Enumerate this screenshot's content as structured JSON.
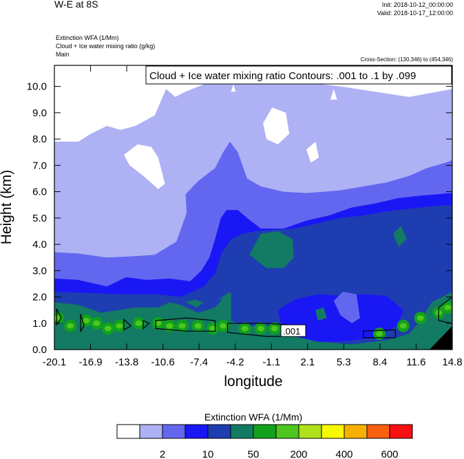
{
  "header": {
    "title": "W-E at 8S",
    "init": "Init: 2018-10-12_00:00:00",
    "valid": "Valid: 2018-10-17_12:00:00",
    "field1": "Extinction WFA   (1/Mm)",
    "field2": "Cloud + Ice water mixing ratio   (g/kg)",
    "field3": "Main",
    "cross_section": "Cross-Section: (130,346) to (454,346)"
  },
  "chart_data": {
    "type": "contour",
    "title": "W-E at 8S",
    "xlabel": "longitude",
    "ylabel": "Height (km)",
    "xlim": [
      -20.1,
      14.8
    ],
    "ylim": [
      0,
      10.8
    ],
    "xticks": [
      "-20.1",
      "-16.9",
      "-13.8",
      "-10.6",
      "-7.4",
      "-4.2",
      "-1.1",
      "2.1",
      "5.3",
      "8.4",
      "11.6",
      "14.8"
    ],
    "yticks": [
      {
        "value": 0,
        "label": "0.0"
      },
      {
        "value": 1,
        "label": "1.0"
      },
      {
        "value": 2,
        "label": "2.0"
      },
      {
        "value": 3,
        "label": "3.0"
      },
      {
        "value": 4,
        "label": "4.0"
      },
      {
        "value": 5,
        "label": "5.0"
      },
      {
        "value": 6,
        "label": "6.0"
      },
      {
        "value": 7,
        "label": "7.0"
      },
      {
        "value": 8,
        "label": "8.0"
      },
      {
        "value": 9,
        "label": "9.0"
      },
      {
        "value": 10,
        "label": "10.0"
      }
    ],
    "contour_annotation": "Cloud + Ice water mixing ratio Contours: .001 to .1 by .099",
    "contour_label": ".001",
    "colorbar": {
      "title": "Extinction WFA  (1/Mm)",
      "colors": [
        "#ffffff",
        "#aeb1f4",
        "#6367f0",
        "#1a17f5",
        "#1e3db0",
        "#137a64",
        "#11a11d",
        "#4ec61e",
        "#b0e01a",
        "#f8f800",
        "#f8b000",
        "#f86010",
        "#f81010"
      ],
      "labels": [
        {
          "after_box": 1,
          "text": "2"
        },
        {
          "after_box": 3,
          "text": "10"
        },
        {
          "after_box": 5,
          "text": "50"
        },
        {
          "after_box": 7,
          "text": "200"
        },
        {
          "after_box": 9,
          "text": "400"
        },
        {
          "after_box": 11,
          "text": "600"
        }
      ]
    },
    "fields": {
      "level_lavender": [
        [
          -20.1,
          7.9
        ],
        [
          -18.0,
          7.9
        ],
        [
          -16.9,
          8.2
        ],
        [
          -15.5,
          8.5
        ],
        [
          -14.3,
          8.35
        ],
        [
          -13.0,
          8.5
        ],
        [
          -11.3,
          8.9
        ],
        [
          -10.3,
          9.9
        ],
        [
          -9.5,
          9.6
        ],
        [
          -8.6,
          9.8
        ],
        [
          -6.6,
          10.15
        ],
        [
          -5.6,
          10.2
        ],
        [
          -3.5,
          10.3
        ],
        [
          -1.5,
          10.25
        ],
        [
          0.8,
          10.3
        ],
        [
          3.0,
          10.1
        ],
        [
          5.0,
          10.0
        ],
        [
          8.0,
          9.8
        ],
        [
          11.0,
          9.6
        ],
        [
          13.5,
          9.8
        ],
        [
          14.8,
          9.9
        ],
        [
          14.8,
          0
        ],
        [
          -20.1,
          0
        ]
      ],
      "level_white_holes": [
        [
          [
            -14.0,
            7.4
          ],
          [
            -12.8,
            7.8
          ],
          [
            -11.6,
            7.7
          ],
          [
            -11.0,
            7.3
          ],
          [
            -10.4,
            6.3
          ],
          [
            -11.0,
            6.1
          ],
          [
            -12.3,
            6.6
          ],
          [
            -13.5,
            7.0
          ]
        ],
        [
          [
            -1.8,
            8.6
          ],
          [
            -1.0,
            9.2
          ],
          [
            0.2,
            9.0
          ],
          [
            0.5,
            8.2
          ],
          [
            -0.5,
            7.8
          ],
          [
            -1.5,
            8.0
          ]
        ],
        [
          [
            2.0,
            7.6
          ],
          [
            2.8,
            7.9
          ],
          [
            3.1,
            7.3
          ],
          [
            2.4,
            7.1
          ]
        ],
        [
          [
            -4.6,
            9.8
          ],
          [
            -4.4,
            10.1
          ],
          [
            -4.2,
            9.8
          ]
        ],
        [
          [
            4.1,
            9.5
          ],
          [
            4.4,
            9.9
          ],
          [
            4.7,
            9.5
          ]
        ]
      ],
      "level_periwinkle": [
        [
          -20.1,
          3.7
        ],
        [
          -18.0,
          3.65
        ],
        [
          -15.5,
          3.5
        ],
        [
          -13.0,
          3.55
        ],
        [
          -11.3,
          3.6
        ],
        [
          -9.4,
          4.1
        ],
        [
          -8.5,
          5.2
        ],
        [
          -8.6,
          5.9
        ],
        [
          -7.5,
          6.4
        ],
        [
          -6.0,
          6.9
        ],
        [
          -5.3,
          7.5
        ],
        [
          -4.7,
          7.9
        ],
        [
          -4.0,
          7.5
        ],
        [
          -3.2,
          6.5
        ],
        [
          -2.0,
          6.2
        ],
        [
          0.0,
          6.0
        ],
        [
          2.0,
          5.95
        ],
        [
          3.5,
          6.0
        ],
        [
          5.0,
          6.05
        ],
        [
          7.0,
          6.2
        ],
        [
          9.0,
          6.35
        ],
        [
          11.0,
          6.6
        ],
        [
          12.6,
          6.9
        ],
        [
          14.2,
          7.1
        ],
        [
          14.8,
          7.2
        ],
        [
          14.8,
          0
        ],
        [
          -20.1,
          0
        ]
      ],
      "level_blue": [
        [
          -20.1,
          2.7
        ],
        [
          -18.0,
          2.65
        ],
        [
          -15.5,
          2.4
        ],
        [
          -13.8,
          2.75
        ],
        [
          -12.0,
          2.65
        ],
        [
          -10.0,
          2.7
        ],
        [
          -8.2,
          2.6
        ],
        [
          -7.2,
          3.0
        ],
        [
          -6.5,
          3.5
        ],
        [
          -6.0,
          4.2
        ],
        [
          -5.5,
          5.0
        ],
        [
          -5.0,
          5.3
        ],
        [
          -4.0,
          5.3
        ],
        [
          -3.2,
          5.0
        ],
        [
          -2.0,
          4.6
        ],
        [
          0.0,
          4.6
        ],
        [
          2.0,
          4.9
        ],
        [
          4.0,
          5.1
        ],
        [
          6.0,
          5.4
        ],
        [
          8.0,
          5.55
        ],
        [
          10.0,
          5.75
        ],
        [
          12.0,
          5.85
        ],
        [
          14.8,
          5.95
        ],
        [
          14.8,
          0
        ],
        [
          -20.1,
          0
        ]
      ],
      "level_navy": [
        [
          -20.1,
          2.2
        ],
        [
          -17.0,
          2.15
        ],
        [
          -14.0,
          2.1
        ],
        [
          -11.0,
          2.1
        ],
        [
          -9.0,
          2.0
        ],
        [
          -7.0,
          2.4
        ],
        [
          -6.0,
          2.9
        ],
        [
          -5.4,
          3.7
        ],
        [
          -4.6,
          4.2
        ],
        [
          -3.6,
          4.4
        ],
        [
          -2.4,
          4.5
        ],
        [
          -1.0,
          4.55
        ],
        [
          1.0,
          4.6
        ],
        [
          3.0,
          4.8
        ],
        [
          5.0,
          5.0
        ],
        [
          7.0,
          5.1
        ],
        [
          9.0,
          5.25
        ],
        [
          11.0,
          5.35
        ],
        [
          13.0,
          5.45
        ],
        [
          14.8,
          5.5
        ],
        [
          14.8,
          0
        ],
        [
          -20.1,
          0
        ]
      ],
      "level_blue_pool": [
        [
          -0.5,
          1.5
        ],
        [
          1.0,
          1.9
        ],
        [
          3.0,
          2.1
        ],
        [
          5.0,
          2.05
        ],
        [
          7.0,
          2.1
        ],
        [
          9.0,
          2.05
        ],
        [
          10.5,
          1.5
        ],
        [
          10.0,
          0.9
        ],
        [
          8.0,
          0.45
        ],
        [
          5.0,
          0.3
        ],
        [
          2.0,
          0.3
        ],
        [
          0.0,
          0.6
        ]
      ],
      "level_periwinkle_pool": [
        [
          4.4,
          1.85
        ],
        [
          5.2,
          2.2
        ],
        [
          6.4,
          2.1
        ],
        [
          6.7,
          1.2
        ],
        [
          6.0,
          1.0
        ],
        [
          5.0,
          1.3
        ]
      ],
      "level_teal": [
        [
          -20.1,
          1.8
        ],
        [
          -18.0,
          1.7
        ],
        [
          -16.0,
          1.4
        ],
        [
          -13.0,
          1.6
        ],
        [
          -11.0,
          1.6
        ],
        [
          -10.0,
          1.8
        ],
        [
          -9.0,
          1.7
        ],
        [
          -7.5,
          1.4
        ],
        [
          -6.0,
          1.6
        ],
        [
          -5.0,
          2.1
        ],
        [
          -4.6,
          2.15
        ],
        [
          -4.6,
          1.1
        ],
        [
          -3.5,
          0.9
        ],
        [
          -1.0,
          0.9
        ],
        [
          1.0,
          0.5
        ],
        [
          3.0,
          0.3
        ],
        [
          6.0,
          0.2
        ],
        [
          9.0,
          0.35
        ],
        [
          11.0,
          0.6
        ],
        [
          12.0,
          1.1
        ],
        [
          13.0,
          1.8
        ],
        [
          14.8,
          2.2
        ],
        [
          14.8,
          0
        ],
        [
          -20.1,
          0
        ]
      ],
      "teal_blobs": [
        [
          [
            -3.0,
            3.6
          ],
          [
            -2.0,
            4.4
          ],
          [
            -0.5,
            4.5
          ],
          [
            0.8,
            4.2
          ],
          [
            0.9,
            3.5
          ],
          [
            0.0,
            3.1
          ],
          [
            -1.5,
            3.1
          ]
        ],
        [
          [
            9.6,
            4.4
          ],
          [
            10.3,
            4.7
          ],
          [
            10.8,
            4.2
          ],
          [
            10.1,
            3.9
          ]
        ],
        [
          [
            -5.7,
            1.9
          ],
          [
            -4.9,
            1.95
          ],
          [
            -4.7,
            2.2
          ]
        ],
        [
          [
            -8.6,
            1.8
          ],
          [
            -7.8,
            1.9
          ],
          [
            -7.0,
            1.8
          ],
          [
            -7.6,
            1.6
          ]
        ],
        [
          [
            2.8,
            1.5
          ],
          [
            3.5,
            1.6
          ],
          [
            3.8,
            1.2
          ],
          [
            3.0,
            1.1
          ]
        ]
      ],
      "green_cells": [
        [
          -19.8,
          1.2
        ],
        [
          -18.7,
          0.9
        ],
        [
          -17.3,
          1.1
        ],
        [
          -16.4,
          1.0
        ],
        [
          -15.4,
          0.8
        ],
        [
          -14.4,
          0.9
        ],
        [
          -12.7,
          1.0
        ],
        [
          -11.0,
          1.0
        ],
        [
          -10.0,
          0.9
        ],
        [
          -8.9,
          0.9
        ],
        [
          -7.5,
          0.9
        ],
        [
          -6.2,
          0.8
        ],
        [
          -5.3,
          0.9
        ],
        [
          -3.4,
          0.8
        ],
        [
          -2.0,
          0.8
        ],
        [
          -0.8,
          0.8
        ],
        [
          8.4,
          0.6
        ],
        [
          10.5,
          0.9
        ],
        [
          12.0,
          1.2
        ],
        [
          13.6,
          1.4
        ],
        [
          14.4,
          1.6
        ]
      ],
      "mixing_ratio_contours": [
        [
          [
            -19.9,
            1.55
          ],
          [
            -19.5,
            1.2
          ],
          [
            -19.9,
            0.95
          ]
        ],
        [
          [
            -17.8,
            1.35
          ],
          [
            -17.5,
            0.9
          ],
          [
            -17.8,
            0.7
          ]
        ],
        [
          [
            -14.0,
            1.15
          ],
          [
            -13.4,
            0.9
          ],
          [
            -14.0,
            0.75
          ]
        ],
        [
          [
            -12.3,
            1.1
          ],
          [
            -11.8,
            1.0
          ],
          [
            -12.3,
            0.8
          ]
        ],
        [
          [
            -11.2,
            1.1
          ],
          [
            -8.5,
            1.2
          ],
          [
            -6.0,
            1.1
          ],
          [
            -6.0,
            0.7
          ],
          [
            -8.5,
            0.7
          ],
          [
            -11.2,
            0.8
          ]
        ],
        [
          [
            -4.9,
            1.0
          ],
          [
            -1.5,
            1.0
          ],
          [
            1.8,
            0.9
          ],
          [
            1.8,
            0.5
          ],
          [
            -1.5,
            0.5
          ],
          [
            -4.9,
            0.65
          ]
        ],
        [
          [
            7.0,
            0.7
          ],
          [
            9.8,
            0.75
          ],
          [
            9.8,
            0.45
          ],
          [
            7.0,
            0.45
          ]
        ],
        [
          [
            13.6,
            1.6
          ],
          [
            14.8,
            2.0
          ],
          [
            14.8,
            1.0
          ],
          [
            13.6,
            1.1
          ]
        ]
      ],
      "missing_terrain": [
        [
          12.8,
          0
        ],
        [
          14.8,
          0
        ],
        [
          14.8,
          0.9
        ]
      ]
    }
  }
}
